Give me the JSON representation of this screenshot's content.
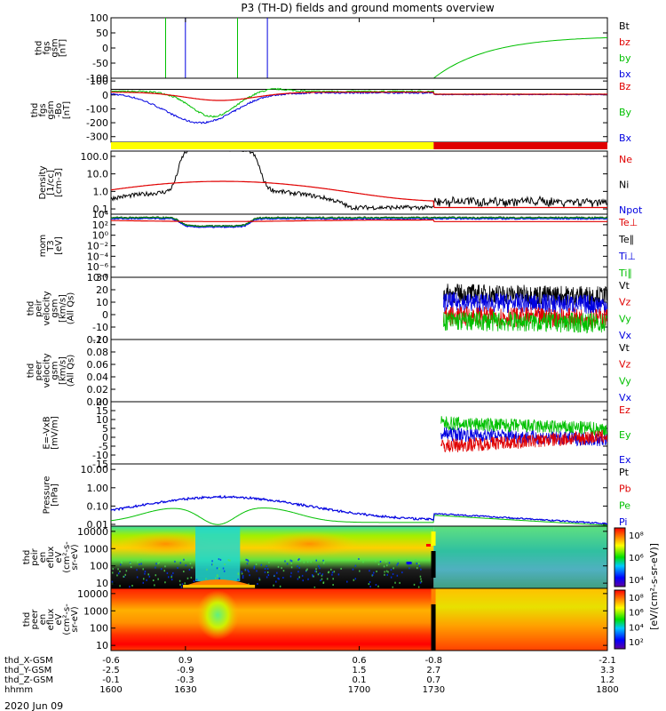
{
  "title": "P3 (TH-D) fields and ground moments overview",
  "date_label": "2020 Jun 09",
  "colors": {
    "black": "#000000",
    "red": "#e00000",
    "green": "#00c000",
    "blue": "#0000e0",
    "yellow": "#ffff00"
  },
  "chart_data": [
    {
      "type": "line",
      "name": "fgs-gsm-nT",
      "ylabel": [
        "thd",
        "fgs",
        "gsm",
        "[nT]"
      ],
      "ylim": [
        -100,
        100
      ],
      "yticks": [
        "100",
        "50",
        "0",
        "-50",
        "-100"
      ],
      "legend": [
        {
          "label": "Bt",
          "color": "black"
        },
        {
          "label": "bz",
          "color": "red"
        },
        {
          "label": "by",
          "color": "green"
        },
        {
          "label": "bx",
          "color": "blue"
        }
      ]
    },
    {
      "type": "line",
      "name": "fgs-gsm-b0",
      "ylabel": [
        "thd",
        "fgs",
        "gsm",
        "-Bo",
        "[nT]"
      ],
      "ylim": [
        -340,
        120
      ],
      "yticks": [
        "100",
        "0",
        "-100",
        "-200",
        "-300"
      ],
      "legend": [
        {
          "label": "Bz",
          "color": "red"
        },
        {
          "label": "By",
          "color": "green"
        },
        {
          "label": "Bx",
          "color": "blue"
        }
      ]
    },
    {
      "type": "bar",
      "name": "mode-bar",
      "segments": [
        {
          "from": 1600,
          "to": 1730,
          "color": "yellow"
        },
        {
          "from": 1730,
          "to": 1800,
          "color": "red"
        }
      ]
    },
    {
      "type": "line",
      "name": "density",
      "log": true,
      "ylabel": [
        "Density",
        "[1/cc]",
        "[cm-3]"
      ],
      "ylim": [
        0.05,
        200
      ],
      "yticks": [
        "100.0",
        "10.0",
        "1.0",
        "0.1"
      ],
      "legend": [
        {
          "label": "Ne",
          "color": "red"
        },
        {
          "label": "Ni",
          "color": "black"
        },
        {
          "label": "Npot",
          "color": "blue"
        }
      ]
    },
    {
      "type": "line",
      "name": "temperature",
      "log": true,
      "ylabel": [
        "mom",
        "T3",
        "[eV]"
      ],
      "ylim": [
        1e-08,
        10000.0
      ],
      "yticks": [
        "10⁴",
        "10²",
        "10⁰",
        "10⁻²",
        "10⁻⁴",
        "10⁻⁶",
        "10⁻⁸"
      ],
      "legend": [
        {
          "label": "Te⊥",
          "color": "red"
        },
        {
          "label": "Te∥",
          "color": "black"
        },
        {
          "label": "Ti⊥",
          "color": "blue"
        },
        {
          "label": "Ti∥",
          "color": "green"
        }
      ]
    },
    {
      "type": "line",
      "name": "peir-velocity",
      "ylabel": [
        "thd",
        "peir",
        "velocity",
        "gsm",
        "[km/s]",
        "(All Qs)"
      ],
      "ylim": [
        -20,
        30
      ],
      "yticks": [
        "30",
        "20",
        "10",
        "0",
        "-10",
        "-20"
      ],
      "legend": [
        {
          "label": "Vt",
          "color": "black"
        },
        {
          "label": "Vz",
          "color": "red"
        },
        {
          "label": "Vy",
          "color": "green"
        },
        {
          "label": "Vx",
          "color": "blue"
        }
      ]
    },
    {
      "type": "line",
      "name": "peer-velocity",
      "ylabel": [
        "thd",
        "peer",
        "velocity",
        "gsm",
        "[km/s]",
        "(All Qs)"
      ],
      "ylim": [
        0,
        0.1
      ],
      "yticks": [
        "0.10",
        "0.08",
        "0.06",
        "0.04",
        "0.02",
        "0.00"
      ],
      "legend": [
        {
          "label": "Vt",
          "color": "black"
        },
        {
          "label": "Vz",
          "color": "red"
        },
        {
          "label": "Vy",
          "color": "green"
        },
        {
          "label": "Vx",
          "color": "blue"
        }
      ]
    },
    {
      "type": "line",
      "name": "efield",
      "ylabel": [
        "E=-VxB",
        "[mV/m]"
      ],
      "ylim": [
        -15,
        20
      ],
      "yticks": [
        "20",
        "15",
        "10",
        "5",
        "0",
        "-5",
        "-10",
        "-15"
      ],
      "legend": [
        {
          "label": "Ez",
          "color": "red"
        },
        {
          "label": "Ey",
          "color": "green"
        },
        {
          "label": "Ex",
          "color": "blue"
        }
      ]
    },
    {
      "type": "line",
      "name": "pressure",
      "log": true,
      "ylabel": [
        "Pressure",
        "[nPa]"
      ],
      "ylim": [
        0.008,
        20
      ],
      "yticks": [
        "10.00",
        "1.00",
        "0.10",
        "0.01"
      ],
      "legend": [
        {
          "label": "Pt",
          "color": "black"
        },
        {
          "label": "Pb",
          "color": "red"
        },
        {
          "label": "Pe",
          "color": "green"
        },
        {
          "label": "Pi",
          "color": "blue"
        }
      ]
    },
    {
      "type": "heatmap",
      "name": "peir-eflux",
      "log": true,
      "ylabel": [
        "thd",
        "peir",
        "en",
        "eflux",
        "eV",
        "(cm²-s-",
        "sr-eV)"
      ],
      "ylim": [
        5,
        20000
      ],
      "yticks": [
        "10000",
        "1000",
        "100",
        "10"
      ]
    },
    {
      "type": "heatmap",
      "name": "peer-eflux",
      "log": true,
      "ylabel": [
        "thd",
        "peer",
        "en",
        "eflux",
        "eV",
        "(cm²-s-",
        "sr-eV)"
      ],
      "ylim": [
        5,
        20000
      ],
      "yticks": [
        "10000",
        "1000",
        "100",
        "10"
      ]
    }
  ],
  "colorbar": {
    "ticks": [
      "10⁸",
      "10⁶",
      "10⁴"
    ],
    "ticks2": [
      "10⁸",
      "10⁶",
      "10⁴",
      "10²"
    ],
    "label": "[eV/(cm²-s-sr-eV)]"
  },
  "xaxis": {
    "time_range": [
      1600,
      1800
    ],
    "rows": [
      {
        "label": "thd_X-GSM",
        "values": [
          "-0.6",
          "0.9",
          "0.6",
          "-0.8",
          "-2.1"
        ]
      },
      {
        "label": "thd_Y-GSM",
        "values": [
          "-2.5",
          "-0.9",
          "1.5",
          "2.7",
          "3.3"
        ]
      },
      {
        "label": "thd_Z-GSM",
        "values": [
          "-0.1",
          "-0.3",
          "0.1",
          "0.7",
          "1.2"
        ]
      },
      {
        "label": "hhmm",
        "values": [
          "1600",
          "1630",
          "1700",
          "1730",
          "1800"
        ]
      }
    ]
  }
}
